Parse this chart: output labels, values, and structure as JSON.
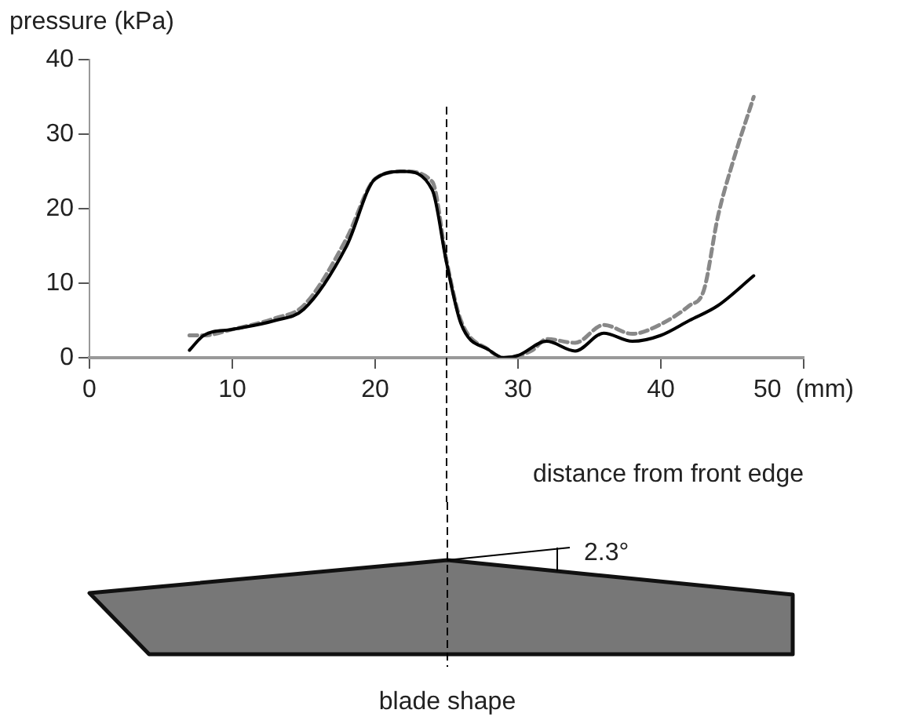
{
  "chart_data": {
    "type": "line",
    "xlabel": "distance from front edge",
    "ylabel": "pressure (kPa)",
    "xlim": [
      0,
      50
    ],
    "xticks": [
      0,
      10,
      20,
      30,
      40,
      {
        "value": 50,
        "label": "50  (mm)"
      }
    ],
    "ylim": [
      0,
      40
    ],
    "yticks": [
      0,
      10,
      20,
      30,
      40
    ],
    "grid": false,
    "legend": false,
    "marker": "none",
    "series": [
      {
        "color": "#000000",
        "line_style": "solid",
        "x": [
          7,
          8,
          10,
          13,
          15,
          18,
          20,
          22,
          24,
          25,
          26,
          28,
          29,
          30,
          32,
          34,
          36,
          38,
          40,
          42,
          44,
          46.5
        ],
        "values": [
          1,
          3,
          3.8,
          5,
          6.5,
          15,
          24,
          25,
          22.5,
          12.7,
          4.6,
          1,
          0,
          0.3,
          2.2,
          0.9,
          3.3,
          2.2,
          3,
          5,
          7,
          11
        ]
      },
      {
        "color": "#888888",
        "line_style": "dashed",
        "x": [
          7,
          8,
          10,
          13,
          15,
          18,
          20,
          22,
          24,
          25,
          26,
          28,
          29,
          31,
          32,
          34,
          36,
          38,
          40,
          42,
          43,
          44,
          45,
          46.5
        ],
        "values": [
          3,
          3,
          3.8,
          5.3,
          7,
          16,
          24,
          25,
          23.6,
          13,
          5,
          1,
          0,
          1,
          2.5,
          2,
          4.4,
          3.2,
          4.5,
          7,
          9,
          19,
          26,
          35
        ]
      }
    ],
    "ref_lines": [
      {
        "axis": "x",
        "value": 25,
        "color": "#000000",
        "line_style": "dashed"
      }
    ],
    "annotations": [
      "2.3°",
      "blade shape"
    ]
  }
}
